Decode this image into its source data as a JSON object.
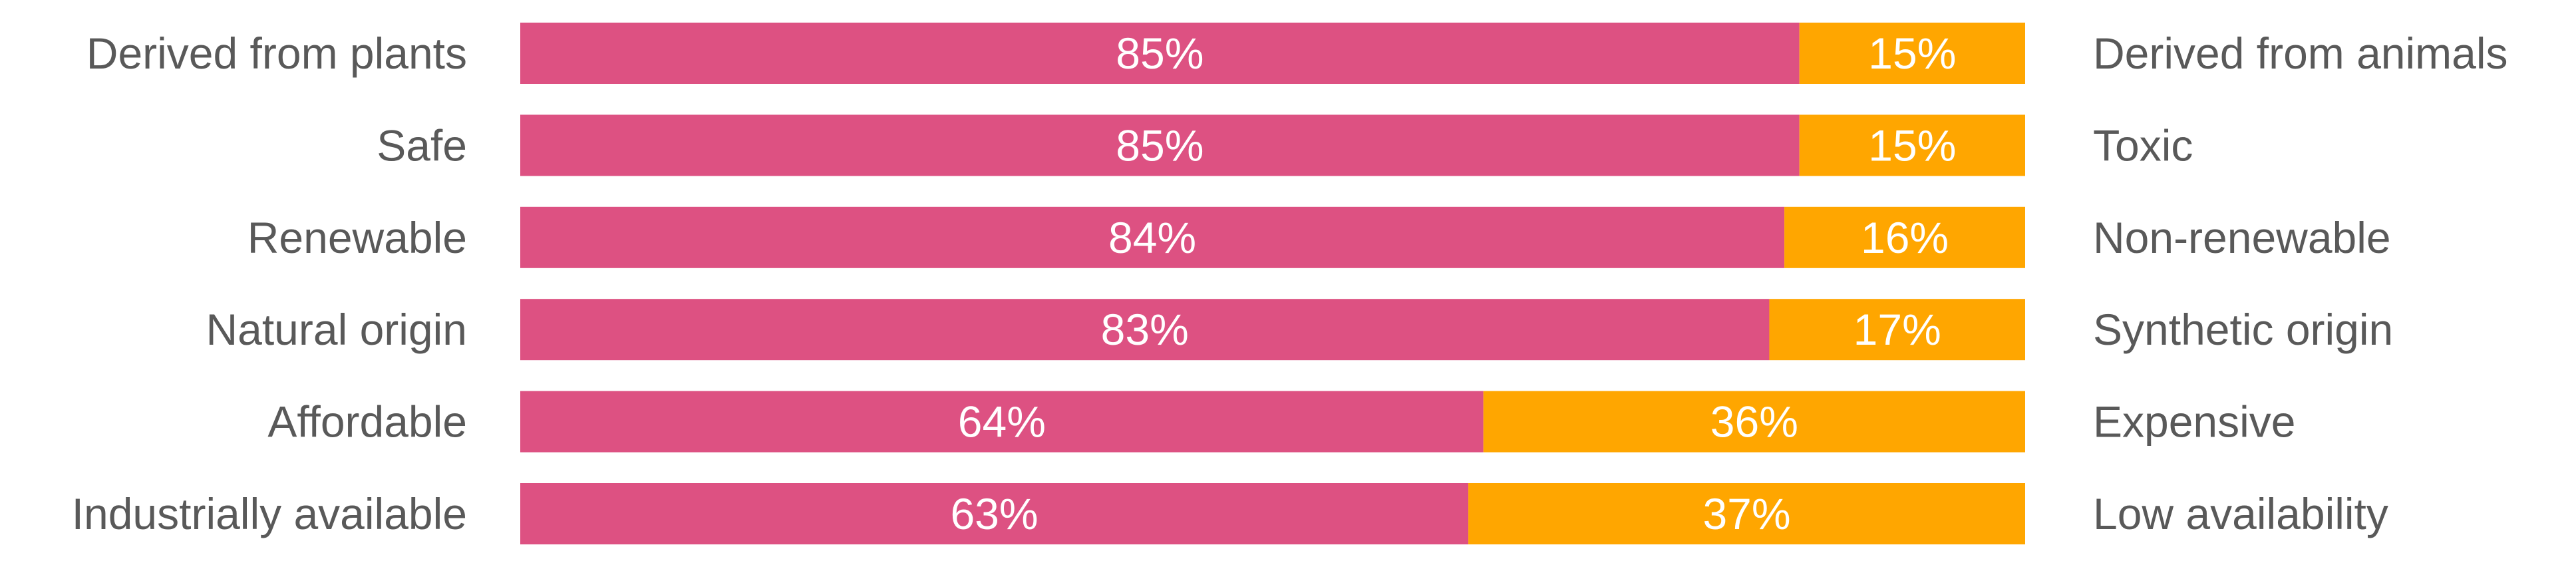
{
  "chart_data": {
    "type": "bar",
    "orientation": "horizontal",
    "stacked": true,
    "normalized_percent": true,
    "categories_left": [
      "Derived from plants",
      "Safe",
      "Renewable",
      "Natural origin",
      "Affordable",
      "Industrially available"
    ],
    "categories_right": [
      "Derived from animals",
      "Toxic",
      "Non-renewable",
      "Synthetic origin",
      "Expensive",
      "Low availability"
    ],
    "series": [
      {
        "values": [
          85,
          85,
          84,
          83,
          64,
          63
        ],
        "labels": [
          "85%",
          "85%",
          "84%",
          "83%",
          "64%",
          "63%"
        ],
        "color": "#dd5182"
      },
      {
        "values": [
          15,
          15,
          16,
          17,
          36,
          37
        ],
        "labels": [
          "15%",
          "15%",
          "16%",
          "17%",
          "36%",
          "37%"
        ],
        "color": "#ffa600"
      }
    ],
    "xlim": [
      0,
      100
    ],
    "grid": false,
    "legend": "none"
  }
}
